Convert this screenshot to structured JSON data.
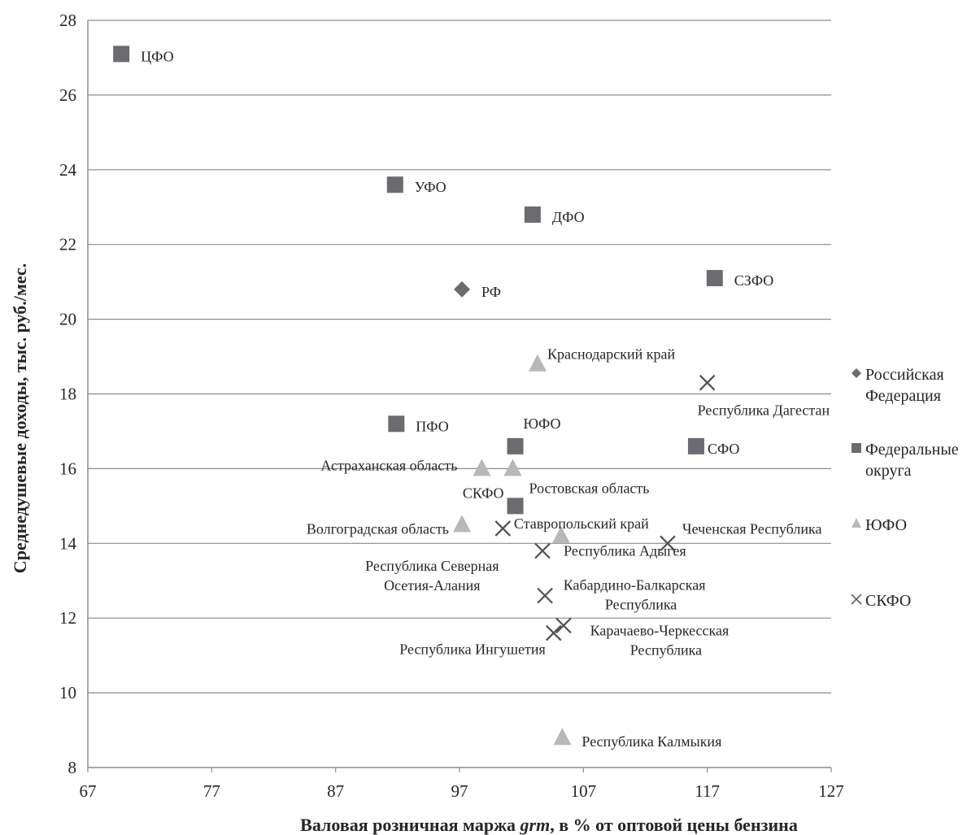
{
  "chart_data": {
    "type": "scatter",
    "title": "",
    "xlabel_parts": [
      {
        "text": "Валовая розничная маржа ",
        "italic": false
      },
      {
        "text": "grm",
        "italic": true
      },
      {
        "text": ", в % от оптовой цены бензина",
        "italic": false
      }
    ],
    "ylabel": "Среднедушевые доходы, тыс. руб./мес.",
    "xlim": [
      67,
      127
    ],
    "ylim": [
      8,
      28
    ],
    "xticks": [
      {
        "value": 67,
        "label": "67"
      },
      {
        "value": 77,
        "label": "77"
      },
      {
        "value": 87,
        "label": "87"
      },
      {
        "value": 97,
        "label": "97"
      },
      {
        "value": 107,
        "label": "107"
      },
      {
        "value": 117,
        "label": "117"
      },
      {
        "value": 127,
        "label": "127"
      }
    ],
    "yticks": [
      8,
      10,
      12,
      14,
      16,
      18,
      20,
      22,
      24,
      26,
      28
    ],
    "grid": "horizontal",
    "legend_position": "right",
    "colors": {
      "square": "#6b6b70",
      "diamond": "#6b6b70",
      "triangle": "#b8b8b8",
      "cross": "#505050",
      "grid": "#8c8c8c",
      "text": "#262626"
    },
    "series": [
      {
        "name": "Российская Федерация",
        "legend_lines": [
          "Российская",
          "Федерация"
        ],
        "marker": "diamond",
        "points": [
          {
            "x": 97.2,
            "y": 20.8,
            "label_lines": [
              "РФ"
            ]
          }
        ]
      },
      {
        "name": "Федеральные округа",
        "legend_lines": [
          "Федеральные",
          "округа"
        ],
        "marker": "square",
        "points": [
          {
            "x": 69.7,
            "y": 27.1,
            "label_lines": [
              "ЦФО"
            ]
          },
          {
            "x": 91.8,
            "y": 23.6,
            "label_lines": [
              "УФО"
            ]
          },
          {
            "x": 102.9,
            "y": 22.8,
            "label_lines": [
              "ДФО"
            ]
          },
          {
            "x": 117.6,
            "y": 21.1,
            "label_lines": [
              "СЗФО"
            ]
          },
          {
            "x": 91.9,
            "y": 17.2,
            "label_lines": [
              "ПФО"
            ]
          },
          {
            "x": 101.5,
            "y": 16.6,
            "label_lines": [
              "ЮФО"
            ]
          },
          {
            "x": 116.1,
            "y": 16.6,
            "label_lines": [
              "СФО"
            ]
          },
          {
            "x": 101.5,
            "y": 15.0,
            "label_lines": [
              "СКФО"
            ]
          }
        ]
      },
      {
        "name": "ЮФО",
        "legend_lines": [
          "ЮФО"
        ],
        "marker": "triangle",
        "points": [
          {
            "x": 103.3,
            "y": 18.8,
            "label_lines": [
              "Краснодарский край"
            ]
          },
          {
            "x": 98.8,
            "y": 16.0,
            "label_lines": [
              "Астраханская область"
            ]
          },
          {
            "x": 101.3,
            "y": 16.0,
            "label_lines": [
              "Ростовская область"
            ]
          },
          {
            "x": 97.2,
            "y": 14.5,
            "label_lines": [
              "Волгоградская область"
            ]
          },
          {
            "x": 105.2,
            "y": 14.2,
            "label_lines": [
              "Ставропольский край"
            ]
          },
          {
            "x": 105.3,
            "y": 8.8,
            "label_lines": [
              "Республика Калмыкия"
            ]
          }
        ]
      },
      {
        "name": "СКФО",
        "legend_lines": [
          "СКФО"
        ],
        "marker": "cross",
        "points": [
          {
            "x": 117.0,
            "y": 18.3,
            "label_lines": [
              "Республика Дагестан"
            ]
          },
          {
            "x": 113.8,
            "y": 14.0,
            "label_lines": [
              "Чеченская Республика"
            ]
          },
          {
            "x": 100.5,
            "y": 14.4,
            "label_lines": [
              "Республика Северная",
              "Осетия-Алания"
            ]
          },
          {
            "x": 103.7,
            "y": 13.8,
            "label_lines": [
              "Республика Адыгея"
            ]
          },
          {
            "x": 103.9,
            "y": 12.6,
            "label_lines": [
              "Кабардино-Балкарская",
              "Республика"
            ]
          },
          {
            "x": 104.6,
            "y": 11.6,
            "label_lines": [
              "Республика Ингушетия"
            ]
          },
          {
            "x": 105.4,
            "y": 11.8,
            "label_lines": [
              "Карачаево-Черкесская",
              "Республика"
            ]
          }
        ]
      }
    ]
  }
}
